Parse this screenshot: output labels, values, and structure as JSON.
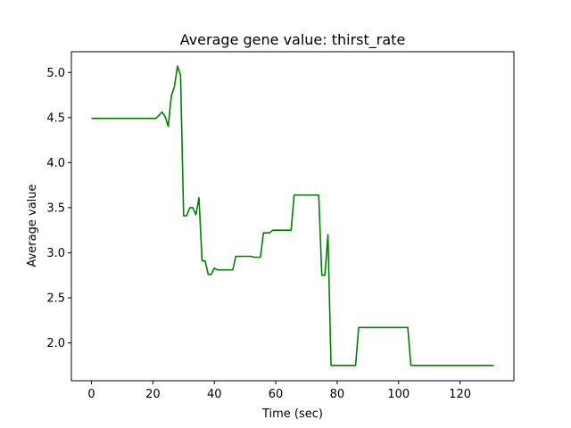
{
  "chart_data": {
    "type": "line",
    "title": "Average gene value: thirst_rate",
    "xlabel": "Time (sec)",
    "ylabel": "Average value",
    "xlim": [
      -6.55,
      137.55
    ],
    "ylim": [
      1.58,
      5.23
    ],
    "x_ticks": [
      0,
      20,
      40,
      60,
      80,
      100,
      120
    ],
    "y_ticks": [
      2.0,
      2.5,
      3.0,
      3.5,
      4.0,
      4.5,
      5.0
    ],
    "x_tick_labels": [
      "0",
      "20",
      "40",
      "60",
      "80",
      "100",
      "120"
    ],
    "y_tick_labels": [
      "2.0",
      "2.5",
      "3.0",
      "3.5",
      "4.0",
      "4.5",
      "5.0"
    ],
    "grid": false,
    "legend": null,
    "series": [
      {
        "color": "#008000",
        "points": [
          [
            0,
            4.49
          ],
          [
            21,
            4.49
          ],
          [
            23,
            4.56
          ],
          [
            24,
            4.51
          ],
          [
            25,
            4.4
          ],
          [
            26,
            4.74
          ],
          [
            27,
            4.84
          ],
          [
            28,
            5.07
          ],
          [
            29,
            4.97
          ],
          [
            30,
            3.41
          ],
          [
            31,
            3.41
          ],
          [
            32,
            3.5
          ],
          [
            33,
            3.5
          ],
          [
            34,
            3.42
          ],
          [
            35,
            3.61
          ],
          [
            36,
            2.91
          ],
          [
            37,
            2.91
          ],
          [
            38,
            2.76
          ],
          [
            39,
            2.76
          ],
          [
            40,
            2.83
          ],
          [
            41,
            2.81
          ],
          [
            46,
            2.81
          ],
          [
            47,
            2.96
          ],
          [
            52,
            2.96
          ],
          [
            53,
            2.95
          ],
          [
            55,
            2.95
          ],
          [
            56,
            3.22
          ],
          [
            58,
            3.22
          ],
          [
            59,
            3.25
          ],
          [
            65,
            3.25
          ],
          [
            66,
            3.64
          ],
          [
            74,
            3.64
          ],
          [
            75,
            2.75
          ],
          [
            76,
            2.75
          ],
          [
            77,
            3.2
          ],
          [
            78,
            1.75
          ],
          [
            86,
            1.75
          ],
          [
            87,
            2.17
          ],
          [
            103,
            2.17
          ],
          [
            104,
            1.75
          ],
          [
            131,
            1.75
          ]
        ]
      }
    ]
  }
}
